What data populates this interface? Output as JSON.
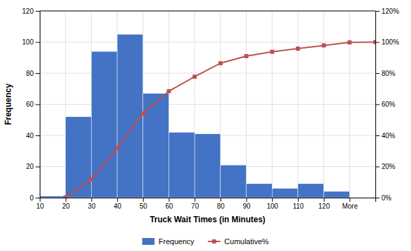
{
  "chart_data": {
    "type": "bar",
    "categories": [
      "10",
      "20",
      "30",
      "40",
      "50",
      "60",
      "70",
      "80",
      "90",
      "100",
      "110",
      "120",
      "More"
    ],
    "xlabel": "Truck Wait Times (in Minutes)",
    "ylabel": "Frequency",
    "ylim": [
      0,
      120
    ],
    "yticks": [
      0,
      20,
      40,
      60,
      80,
      100,
      120
    ],
    "y2lim": [
      0,
      120
    ],
    "y2ticks": [
      {
        "value": 0,
        "label": "0%"
      },
      {
        "value": 20,
        "label": "20%"
      },
      {
        "value": 40,
        "label": "40%"
      },
      {
        "value": 60,
        "label": "60%"
      },
      {
        "value": 80,
        "label": "80%"
      },
      {
        "value": 100,
        "label": "100%"
      },
      {
        "value": 120,
        "label": "120%"
      }
    ],
    "grid": true,
    "legend": "bottom",
    "series": [
      {
        "name": "Frequency",
        "type": "bar",
        "color": "#4472C4",
        "values": [
          1,
          52,
          94,
          105,
          67,
          42,
          41,
          21,
          9,
          6,
          9,
          4,
          0
        ]
      },
      {
        "name": "Cumulative%",
        "type": "line",
        "color": "#C0504D",
        "marker": "square",
        "axis": "y2",
        "values": [
          0.21,
          11.78,
          31.86,
          54.08,
          68.41,
          77.74,
          86.39,
          90.95,
          93.75,
          95.79,
          97.84,
          99.79,
          100.0
        ]
      }
    ]
  }
}
